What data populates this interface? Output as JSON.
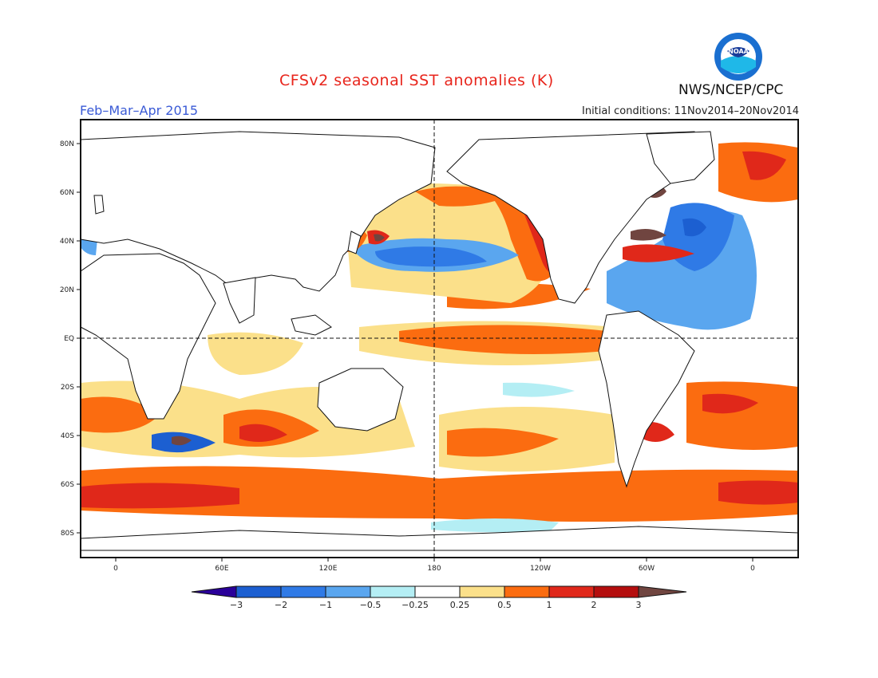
{
  "header": {
    "title": "CFSv2 seasonal SST anomalies (K)",
    "period": "Feb–Mar–Apr 2015",
    "initial_conditions": "Initial conditions: 11Nov2014–20Nov2014",
    "agency": "NWS/NCEP/CPC",
    "logo_text": "NOAA"
  },
  "map": {
    "lat_labels": [
      "80N",
      "60N",
      "40N",
      "20N",
      "EQ",
      "20S",
      "40S",
      "60S",
      "80S"
    ],
    "lon_labels": [
      "0",
      "60E",
      "120E",
      "180",
      "120W",
      "60W",
      "0"
    ]
  },
  "colorbar": {
    "labels": [
      "−3",
      "−2",
      "−1",
      "−0.5",
      "−0.25",
      "0.25",
      "0.5",
      "1",
      "2",
      "3"
    ],
    "colors": [
      "#2a0099",
      "#1c5fd1",
      "#2f7ae6",
      "#5aa6ef",
      "#b4eef4",
      "#ffffff",
      "#fbe08a",
      "#fb6c10",
      "#e0281a",
      "#b40e0e",
      "#704540"
    ]
  },
  "colors": {
    "land": "#ffffff",
    "coast": "#111111",
    "title": "#e8251c",
    "period": "#3b5bd6"
  }
}
